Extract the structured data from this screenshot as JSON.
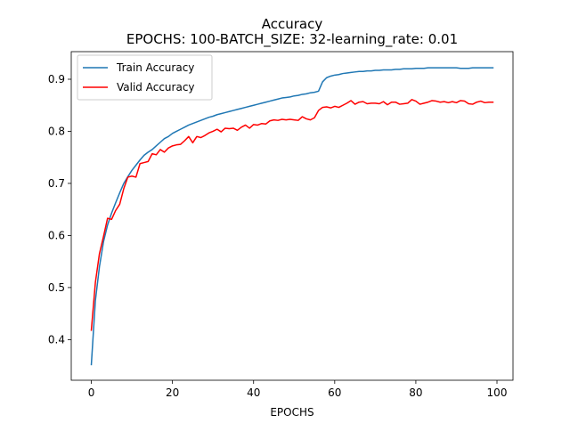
{
  "chart_data": {
    "type": "line",
    "title": "Accuracy",
    "subtitle": "EPOCHS: 100-BATCH_SIZE: 32-learning_rate: 0.01",
    "xlabel": "EPOCHS",
    "ylabel": "",
    "xlim": [
      -4.95,
      103.95
    ],
    "ylim": [
      0.322,
      0.953
    ],
    "xticks": [
      0,
      20,
      40,
      60,
      80,
      100
    ],
    "xtick_labels": [
      "0",
      "20",
      "40",
      "60",
      "80",
      "100"
    ],
    "yticks": [
      0.4,
      0.5,
      0.6,
      0.7,
      0.8,
      0.9
    ],
    "ytick_labels": [
      "0.4",
      "0.5",
      "0.6",
      "0.7",
      "0.8",
      "0.9"
    ],
    "grid": false,
    "legend_position": "upper left",
    "series": [
      {
        "name": "Train Accuracy",
        "color": "#1f77b4",
        "x": [
          0,
          1,
          2,
          3,
          4,
          5,
          6,
          7,
          8,
          9,
          10,
          11,
          12,
          13,
          14,
          15,
          16,
          17,
          18,
          19,
          20,
          21,
          22,
          23,
          24,
          25,
          26,
          27,
          28,
          29,
          30,
          31,
          32,
          33,
          34,
          35,
          36,
          37,
          38,
          39,
          40,
          41,
          42,
          43,
          44,
          45,
          46,
          47,
          48,
          49,
          50,
          51,
          52,
          53,
          54,
          55,
          56,
          57,
          58,
          59,
          60,
          61,
          62,
          63,
          64,
          65,
          66,
          67,
          68,
          69,
          70,
          71,
          72,
          73,
          74,
          75,
          76,
          77,
          78,
          79,
          80,
          81,
          82,
          83,
          84,
          85,
          86,
          87,
          88,
          89,
          90,
          91,
          92,
          93,
          94,
          95,
          96,
          97,
          98,
          99
        ],
        "values": [
          0.352,
          0.475,
          0.54,
          0.588,
          0.62,
          0.643,
          0.663,
          0.682,
          0.7,
          0.713,
          0.725,
          0.735,
          0.745,
          0.754,
          0.76,
          0.765,
          0.772,
          0.779,
          0.786,
          0.79,
          0.796,
          0.8,
          0.804,
          0.808,
          0.812,
          0.815,
          0.818,
          0.821,
          0.824,
          0.827,
          0.829,
          0.832,
          0.834,
          0.836,
          0.838,
          0.84,
          0.842,
          0.844,
          0.846,
          0.848,
          0.85,
          0.852,
          0.854,
          0.856,
          0.858,
          0.86,
          0.862,
          0.864,
          0.865,
          0.866,
          0.868,
          0.869,
          0.871,
          0.872,
          0.874,
          0.875,
          0.877,
          0.895,
          0.903,
          0.906,
          0.908,
          0.909,
          0.911,
          0.912,
          0.913,
          0.914,
          0.915,
          0.915,
          0.916,
          0.916,
          0.917,
          0.917,
          0.918,
          0.918,
          0.918,
          0.919,
          0.919,
          0.92,
          0.92,
          0.92,
          0.921,
          0.921,
          0.921,
          0.922,
          0.922,
          0.922,
          0.922,
          0.922,
          0.922,
          0.922,
          0.922,
          0.921,
          0.921,
          0.921,
          0.922,
          0.922,
          0.922,
          0.922,
          0.922,
          0.922
        ]
      },
      {
        "name": "Valid Accuracy",
        "color": "#ff0000",
        "x": [
          0,
          1,
          2,
          3,
          4,
          5,
          6,
          7,
          8,
          9,
          10,
          11,
          12,
          13,
          14,
          15,
          16,
          17,
          18,
          19,
          20,
          21,
          22,
          23,
          24,
          25,
          26,
          27,
          28,
          29,
          30,
          31,
          32,
          33,
          34,
          35,
          36,
          37,
          38,
          39,
          40,
          41,
          42,
          43,
          44,
          45,
          46,
          47,
          48,
          49,
          50,
          51,
          52,
          53,
          54,
          55,
          56,
          57,
          58,
          59,
          60,
          61,
          62,
          63,
          64,
          65,
          66,
          67,
          68,
          69,
          70,
          71,
          72,
          73,
          74,
          75,
          76,
          77,
          78,
          79,
          80,
          81,
          82,
          83,
          84,
          85,
          86,
          87,
          88,
          89,
          90,
          91,
          92,
          93,
          94,
          95,
          96,
          97,
          98,
          99
        ],
        "values": [
          0.418,
          0.51,
          0.565,
          0.598,
          0.633,
          0.631,
          0.648,
          0.66,
          0.69,
          0.712,
          0.714,
          0.712,
          0.738,
          0.74,
          0.742,
          0.757,
          0.755,
          0.765,
          0.76,
          0.768,
          0.772,
          0.774,
          0.775,
          0.782,
          0.79,
          0.778,
          0.79,
          0.788,
          0.792,
          0.797,
          0.8,
          0.804,
          0.799,
          0.806,
          0.805,
          0.806,
          0.802,
          0.808,
          0.812,
          0.806,
          0.813,
          0.812,
          0.815,
          0.814,
          0.82,
          0.822,
          0.821,
          0.823,
          0.822,
          0.823,
          0.822,
          0.821,
          0.828,
          0.824,
          0.822,
          0.826,
          0.84,
          0.846,
          0.847,
          0.845,
          0.848,
          0.846,
          0.85,
          0.854,
          0.859,
          0.852,
          0.856,
          0.857,
          0.853,
          0.854,
          0.854,
          0.853,
          0.857,
          0.851,
          0.856,
          0.856,
          0.852,
          0.853,
          0.854,
          0.861,
          0.858,
          0.852,
          0.854,
          0.856,
          0.859,
          0.858,
          0.856,
          0.857,
          0.855,
          0.857,
          0.855,
          0.859,
          0.858,
          0.853,
          0.852,
          0.856,
          0.858,
          0.855,
          0.856,
          0.856
        ]
      }
    ]
  }
}
